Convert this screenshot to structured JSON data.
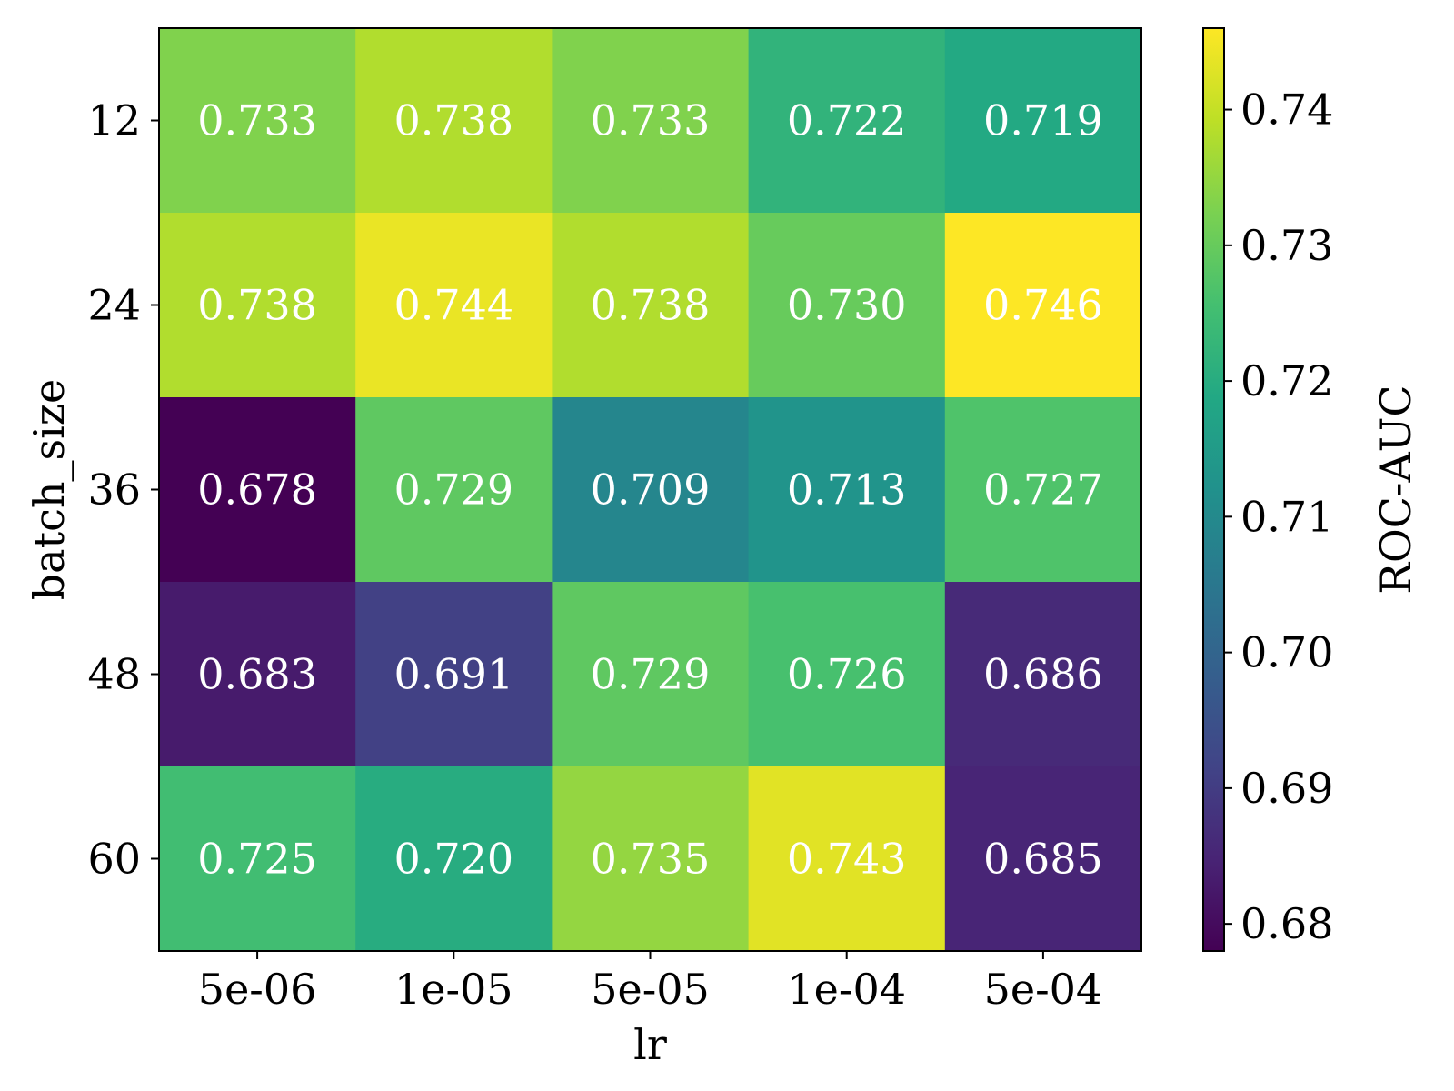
{
  "chart_data": {
    "type": "heatmap",
    "title": "",
    "xlabel": "lr",
    "ylabel": "batch_size",
    "x_categories": [
      "5e-06",
      "1e-05",
      "5e-05",
      "1e-04",
      "5e-04"
    ],
    "y_categories": [
      "12",
      "24",
      "36",
      "48",
      "60"
    ],
    "values": [
      [
        0.733,
        0.738,
        0.733,
        0.722,
        0.719
      ],
      [
        0.738,
        0.744,
        0.738,
        0.73,
        0.746
      ],
      [
        0.678,
        0.729,
        0.709,
        0.713,
        0.727
      ],
      [
        0.683,
        0.691,
        0.729,
        0.726,
        0.686
      ],
      [
        0.725,
        0.72,
        0.735,
        0.743,
        0.685
      ]
    ],
    "cell_labels": [
      [
        "0.733",
        "0.738",
        "0.733",
        "0.722",
        "0.719"
      ],
      [
        "0.738",
        "0.744",
        "0.738",
        "0.730",
        "0.746"
      ],
      [
        "0.678",
        "0.729",
        "0.709",
        "0.713",
        "0.727"
      ],
      [
        "0.683",
        "0.691",
        "0.729",
        "0.726",
        "0.686"
      ],
      [
        "0.725",
        "0.720",
        "0.735",
        "0.743",
        "0.685"
      ]
    ],
    "colormap": "viridis",
    "colorbar": {
      "label": "ROC-AUC",
      "vmin": 0.678,
      "vmax": 0.746,
      "ticks": [
        0.68,
        0.69,
        0.7,
        0.71,
        0.72,
        0.73,
        0.74
      ],
      "tick_labels": [
        "0.68",
        "0.69",
        "0.70",
        "0.71",
        "0.72",
        "0.73",
        "0.74"
      ]
    },
    "grid": false
  }
}
